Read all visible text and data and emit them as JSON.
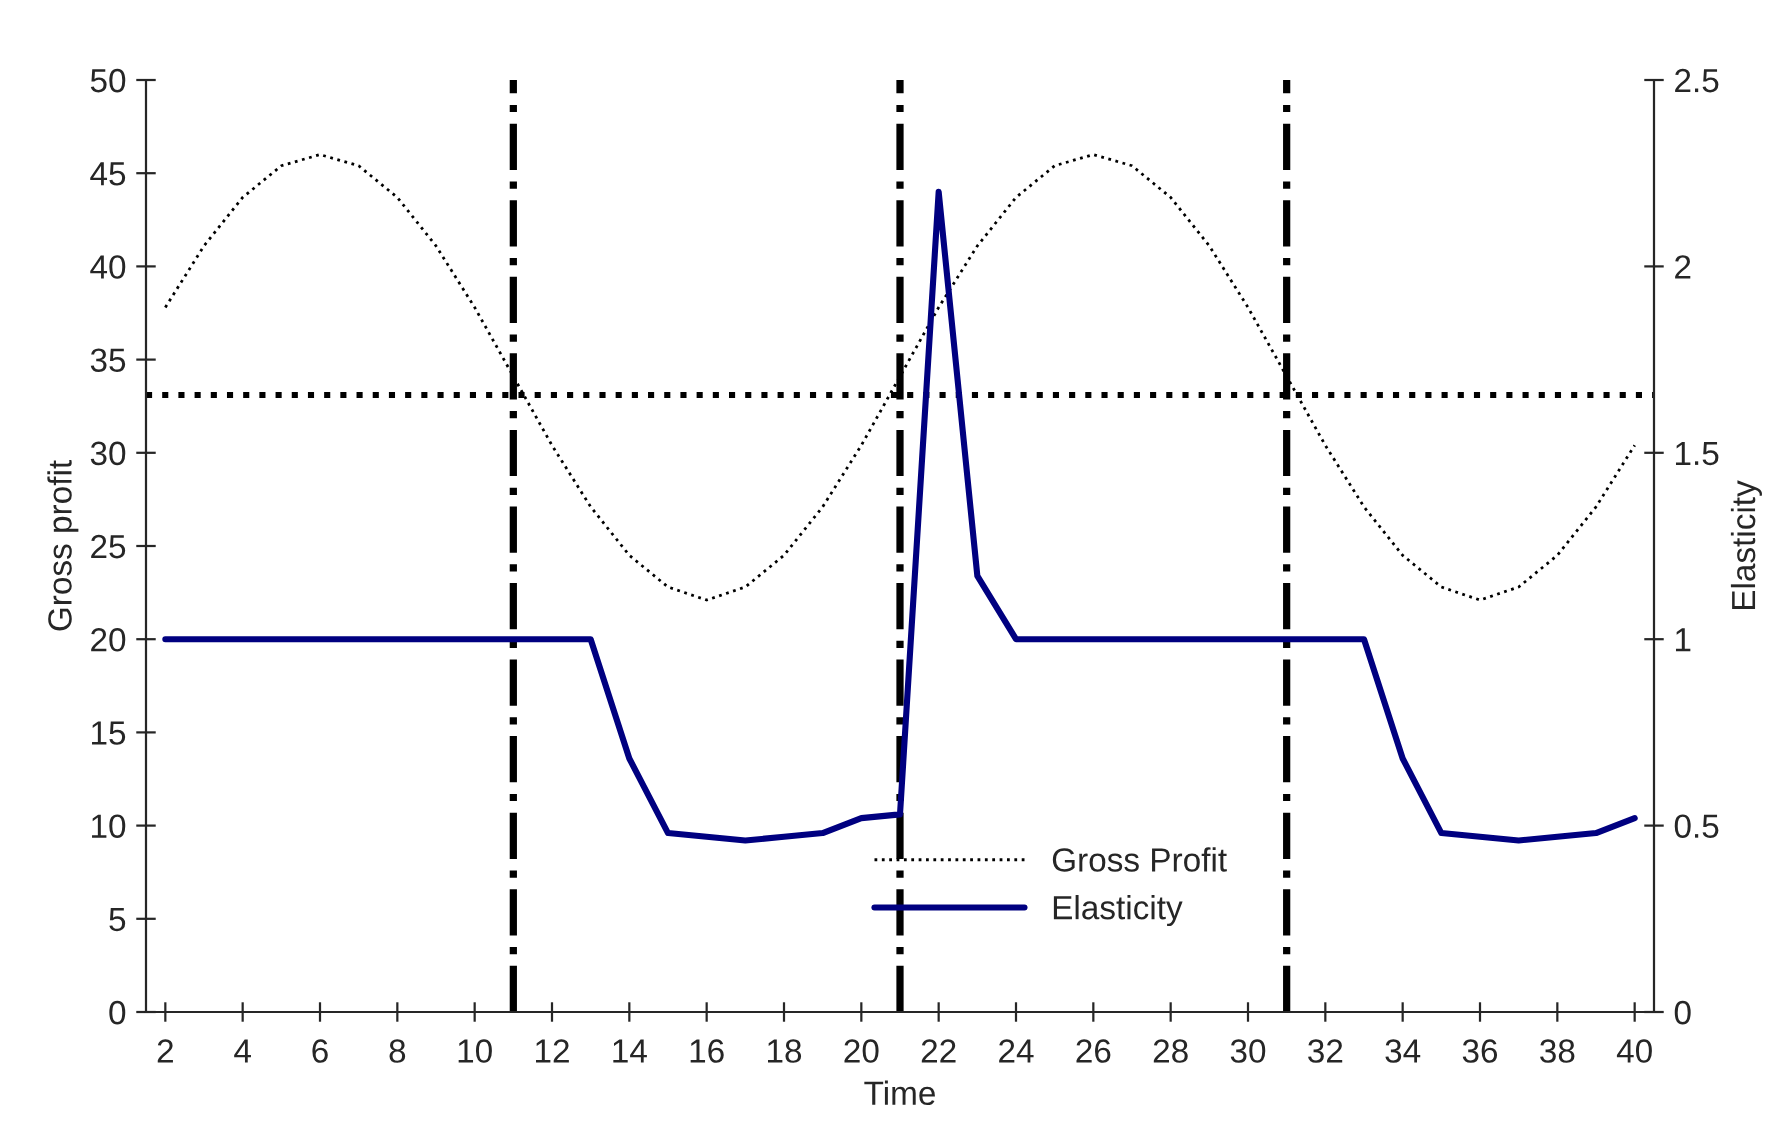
{
  "chart_data": {
    "type": "line",
    "xlabel": "Time",
    "ylabel": "Gross profit",
    "y2label": "Elasticity",
    "x": [
      2,
      3,
      4,
      5,
      6,
      7,
      8,
      9,
      10,
      11,
      12,
      13,
      14,
      15,
      16,
      17,
      18,
      19,
      20,
      21,
      22,
      23,
      24,
      25,
      26,
      27,
      28,
      29,
      30,
      31,
      32,
      33,
      34,
      35,
      36,
      37,
      38,
      39,
      40
    ],
    "series": [
      {
        "name": "Gross Profit",
        "color": "#000000",
        "line_style": "dotted",
        "values": [
          37.8,
          41.1,
          43.7,
          45.4,
          46.0,
          45.4,
          43.7,
          41.1,
          37.8,
          34.1,
          30.4,
          27.1,
          24.5,
          22.8,
          22.1,
          22.8,
          24.5,
          27.1,
          30.4,
          34.1,
          37.8,
          41.1,
          43.7,
          45.4,
          46.0,
          45.4,
          43.7,
          41.1,
          37.8,
          34.1,
          30.4,
          27.1,
          24.5,
          22.8,
          22.1,
          22.8,
          24.5,
          27.1,
          30.4
        ]
      },
      {
        "name": "Elasticity",
        "color": "#000080",
        "line_style": "solid",
        "axis": "y2",
        "values": [
          1,
          1,
          1,
          1,
          1,
          1,
          1,
          1,
          1,
          1,
          1,
          1,
          0.68,
          0.48,
          0.47,
          0.46,
          0.47,
          0.48,
          0.52,
          0.53,
          2.2,
          1.17,
          1,
          1,
          1,
          1,
          1,
          1,
          1,
          1,
          1,
          1,
          0.68,
          0.48,
          0.47,
          0.46,
          0.47,
          0.48,
          0.52
        ]
      }
    ],
    "xlim": [
      1.5,
      40.5
    ],
    "xticks": [
      2,
      4,
      6,
      8,
      10,
      12,
      14,
      16,
      18,
      20,
      22,
      24,
      26,
      28,
      30,
      32,
      34,
      36,
      38,
      40
    ],
    "ylim": [
      0,
      50
    ],
    "yticks": [
      0,
      5,
      10,
      15,
      20,
      25,
      30,
      35,
      40,
      45,
      50
    ],
    "y2lim": [
      0,
      2.5
    ],
    "y2ticks": [
      0,
      0.5,
      1,
      1.5,
      2,
      2.5
    ],
    "ref_lines": [
      {
        "axis": "y",
        "value": 33.1,
        "color": "#000000",
        "line_style": "dotted"
      },
      {
        "axis": "x",
        "value": 11,
        "color": "#000000",
        "line_style": "dashdot"
      },
      {
        "axis": "x",
        "value": 21,
        "color": "#000000",
        "line_style": "dashdot"
      },
      {
        "axis": "x",
        "value": 31,
        "color": "#000000",
        "line_style": "dashdot"
      }
    ],
    "legend": "bottom",
    "grid": false,
    "marker": "none"
  }
}
